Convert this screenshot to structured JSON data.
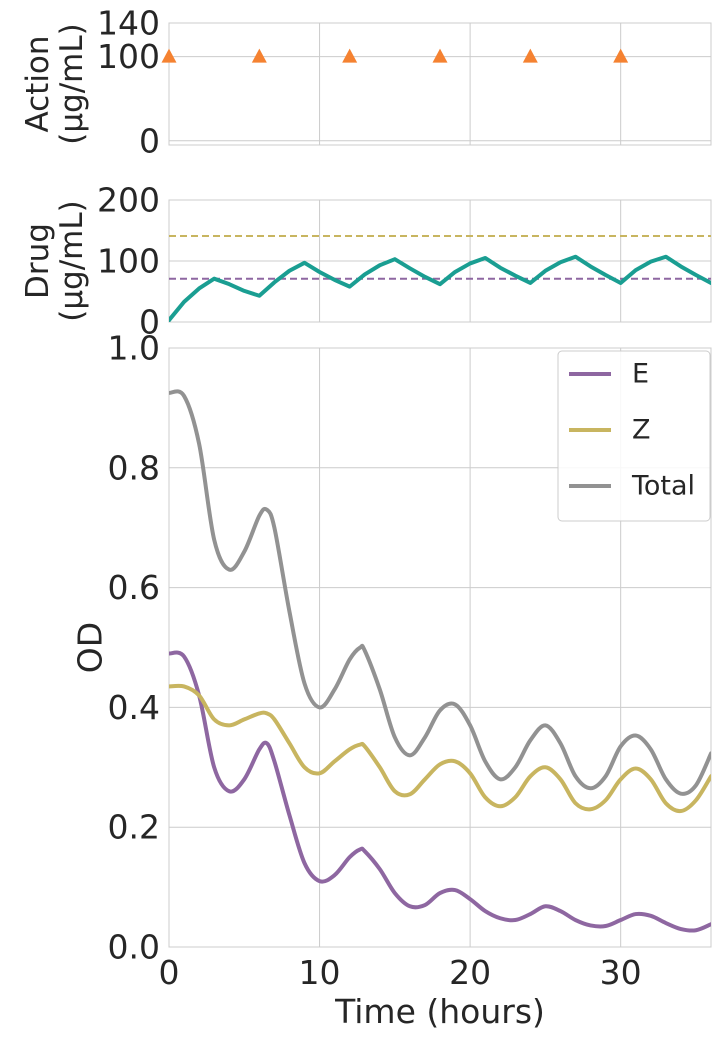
{
  "chart_data": [
    {
      "id": "action",
      "type": "scatter",
      "ylabel": [
        "Action",
        "(µg/mL)"
      ],
      "xlim": [
        0,
        36
      ],
      "ylim": [
        -5,
        140
      ],
      "yticks": [
        0,
        100,
        140
      ],
      "ytick_labels": [
        "0",
        "100",
        "140"
      ],
      "xticks": [
        0,
        10,
        20,
        30
      ],
      "grid": true,
      "series": [
        {
          "marker": "triangle",
          "color": "#f58231",
          "x": [
            0,
            6,
            12,
            18,
            24,
            30
          ],
          "y": [
            100,
            100,
            100,
            100,
            100,
            100
          ]
        }
      ]
    },
    {
      "id": "drug",
      "type": "line",
      "ylabel": [
        "Drug",
        "(µg/mL)"
      ],
      "xlim": [
        0,
        36
      ],
      "ylim": [
        0,
        200
      ],
      "yticks": [
        0,
        100,
        200
      ],
      "ytick_labels": [
        "0",
        "100",
        "200"
      ],
      "xticks": [
        0,
        10,
        20,
        30
      ],
      "grid": true,
      "reference_lines": [
        {
          "y": 141,
          "color": "#c8b560",
          "style": "dashed"
        },
        {
          "y": 71,
          "color": "#8e67a1",
          "style": "dashed"
        }
      ],
      "series": [
        {
          "color": "#1a9e92",
          "x": [
            0,
            1,
            2,
            3,
            4,
            5,
            6,
            7,
            8,
            9,
            10,
            11,
            12,
            13,
            14,
            15,
            16,
            17,
            18,
            19,
            20,
            21,
            22,
            23,
            24,
            25,
            26,
            27,
            28,
            29,
            30,
            31,
            32,
            33,
            34,
            35,
            36
          ],
          "y": [
            3,
            33,
            55,
            71,
            62,
            51,
            43,
            65,
            84,
            97,
            82,
            69,
            58,
            78,
            93,
            103,
            88,
            74,
            62,
            82,
            96,
            105,
            89,
            76,
            64,
            84,
            98,
            107,
            91,
            77,
            64,
            85,
            99,
            107,
            91,
            77,
            64
          ]
        }
      ]
    },
    {
      "id": "od",
      "type": "line",
      "xlabel": "Time (hours)",
      "ylabel": "OD",
      "xlim": [
        0,
        36
      ],
      "ylim": [
        0,
        1
      ],
      "xticks": [
        0,
        10,
        20,
        30
      ],
      "xtick_labels": [
        "0",
        "10",
        "20",
        "30"
      ],
      "yticks": [
        0,
        0.2,
        0.4,
        0.6,
        0.8,
        1.0
      ],
      "ytick_labels": [
        "0.0",
        "0.2",
        "0.4",
        "0.6",
        "0.8",
        "1.0"
      ],
      "grid": true,
      "legend": "top-right",
      "series": [
        {
          "name": "E",
          "color": "#8e67a1",
          "x": [
            0,
            1,
            2,
            3,
            4,
            5,
            6,
            6.5,
            7,
            8,
            9,
            10,
            11,
            12,
            12.7,
            13,
            14,
            15,
            16,
            17,
            18,
            19,
            20,
            21,
            22,
            23,
            24,
            25,
            26,
            27,
            28,
            29,
            30,
            31,
            32,
            33,
            34,
            35,
            36
          ],
          "y": [
            0.49,
            0.485,
            0.42,
            0.3,
            0.26,
            0.28,
            0.33,
            0.34,
            0.31,
            0.22,
            0.14,
            0.11,
            0.12,
            0.15,
            0.163,
            0.16,
            0.13,
            0.09,
            0.068,
            0.07,
            0.09,
            0.095,
            0.08,
            0.06,
            0.048,
            0.045,
            0.055,
            0.068,
            0.06,
            0.045,
            0.036,
            0.035,
            0.045,
            0.055,
            0.052,
            0.04,
            0.03,
            0.028,
            0.038
          ]
        },
        {
          "name": "Z",
          "color": "#c8b560",
          "x": [
            0,
            1,
            2,
            3,
            4,
            5,
            6,
            6.5,
            7,
            8,
            9,
            10,
            11,
            12,
            12.7,
            13,
            14,
            15,
            16,
            17,
            18,
            19,
            20,
            21,
            22,
            23,
            24,
            25,
            26,
            27,
            28,
            29,
            30,
            31,
            32,
            33,
            34,
            35,
            36
          ],
          "y": [
            0.435,
            0.435,
            0.42,
            0.38,
            0.37,
            0.38,
            0.39,
            0.39,
            0.38,
            0.34,
            0.3,
            0.29,
            0.31,
            0.33,
            0.338,
            0.335,
            0.3,
            0.26,
            0.255,
            0.28,
            0.305,
            0.31,
            0.29,
            0.25,
            0.235,
            0.25,
            0.285,
            0.3,
            0.28,
            0.24,
            0.23,
            0.245,
            0.28,
            0.298,
            0.28,
            0.24,
            0.227,
            0.245,
            0.285
          ]
        },
        {
          "name": "Total",
          "color": "#929292",
          "x": [
            0,
            1,
            2,
            3,
            4,
            5,
            6,
            6.5,
            7,
            8,
            9,
            10,
            11,
            12,
            12.7,
            13,
            14,
            15,
            16,
            17,
            18,
            19,
            20,
            21,
            22,
            23,
            24,
            25,
            26,
            27,
            28,
            29,
            30,
            31,
            32,
            33,
            34,
            35,
            36
          ],
          "y": [
            0.925,
            0.92,
            0.84,
            0.68,
            0.63,
            0.66,
            0.72,
            0.73,
            0.7,
            0.56,
            0.44,
            0.4,
            0.43,
            0.48,
            0.5,
            0.495,
            0.43,
            0.35,
            0.32,
            0.35,
            0.395,
            0.405,
            0.37,
            0.31,
            0.28,
            0.3,
            0.345,
            0.37,
            0.34,
            0.285,
            0.265,
            0.285,
            0.335,
            0.353,
            0.33,
            0.28,
            0.256,
            0.27,
            0.323
          ]
        }
      ]
    }
  ]
}
